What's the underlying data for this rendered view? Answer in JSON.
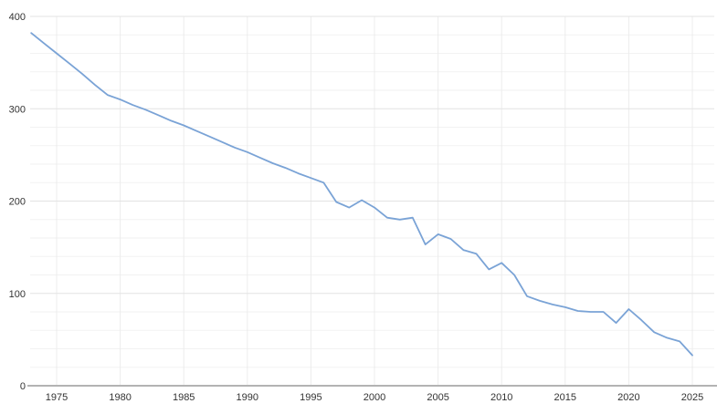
{
  "chart_data": {
    "type": "line",
    "title": "",
    "xlabel": "",
    "ylabel": "",
    "x": [
      1973,
      1974,
      1975,
      1976,
      1977,
      1978,
      1979,
      1980,
      1981,
      1982,
      1983,
      1984,
      1985,
      1986,
      1987,
      1988,
      1989,
      1990,
      1991,
      1992,
      1993,
      1994,
      1995,
      1996,
      1997,
      1998,
      1999,
      2000,
      2001,
      2002,
      2003,
      2004,
      2005,
      2006,
      2007,
      2008,
      2009,
      2010,
      2011,
      2012,
      2013,
      2014,
      2015,
      2016,
      2017,
      2018,
      2019,
      2020,
      2021,
      2022,
      2023,
      2024,
      2025
    ],
    "series": [
      {
        "name": "value",
        "values": [
          382,
          371,
          360,
          349,
          338,
          326,
          315,
          310,
          304,
          299,
          293,
          287,
          282,
          276,
          270,
          264,
          258,
          253,
          247,
          241,
          236,
          230,
          225,
          220,
          199,
          193,
          201,
          193,
          182,
          180,
          182,
          153,
          164,
          159,
          147,
          143,
          126,
          133,
          120,
          97,
          92,
          88,
          85,
          81,
          80,
          80,
          68,
          83,
          71,
          58,
          52,
          48,
          33
        ]
      }
    ],
    "ylim": [
      0,
      400
    ],
    "xlim": [
      1973,
      2025
    ],
    "yticks": [
      0,
      100,
      200,
      300,
      400
    ],
    "ytick_labels": [
      "0",
      "100",
      "200",
      "300",
      "400"
    ],
    "xticks": [
      1975,
      1980,
      1985,
      1990,
      1995,
      2000,
      2005,
      2010,
      2015,
      2020,
      2025
    ],
    "xtick_labels": [
      "1975",
      "1980",
      "1985",
      "1990",
      "1995",
      "2000",
      "2005",
      "2010",
      "2015",
      "2020",
      "2025"
    ],
    "minor_y_step": 20,
    "grid": true,
    "legend_position": "none",
    "colors": {
      "line": "#7aa3d6",
      "major_grid": "#e3e3e3",
      "minor_grid": "#f2f2f2",
      "vertical_grid": "#ececec",
      "axis_line": "#b3b3b3",
      "tick_label": "#333333",
      "background": "#ffffff"
    }
  }
}
